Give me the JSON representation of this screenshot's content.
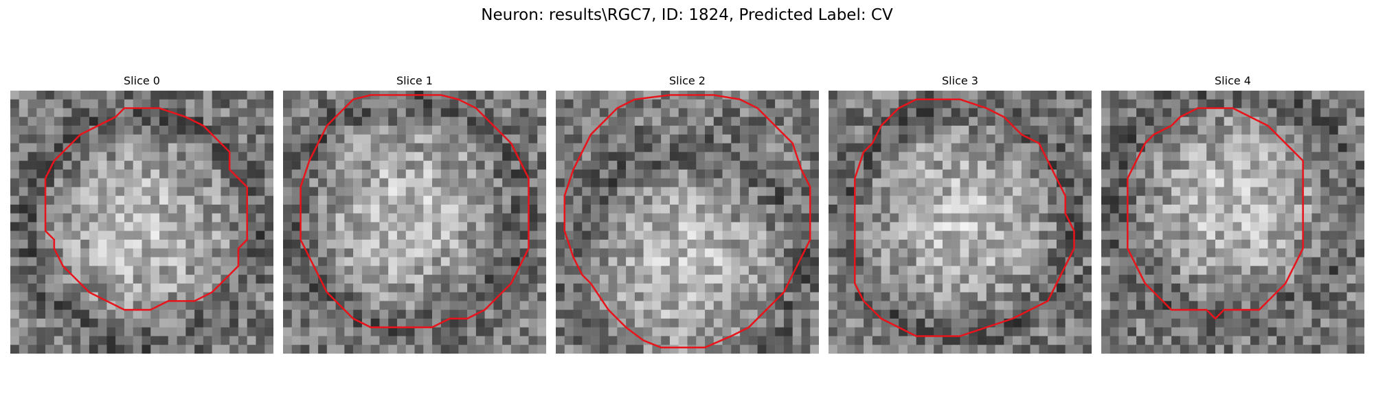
{
  "figure": {
    "title": "Neuron: results\\RGC7, ID: 1824, Predicted Label: CV"
  },
  "colors": {
    "contour": "#e8141b",
    "colormap": "gray"
  },
  "panels": [
    {
      "title": "Slice 0",
      "image_grid": 30,
      "bright_center": [
        15,
        16
      ],
      "contour": [
        [
          13,
          2
        ],
        [
          17,
          2
        ],
        [
          20,
          3
        ],
        [
          22,
          4
        ],
        [
          25,
          7
        ],
        [
          25,
          9
        ],
        [
          27,
          11
        ],
        [
          27,
          12
        ],
        [
          27,
          14
        ],
        [
          27,
          16
        ],
        [
          27,
          17
        ],
        [
          26,
          18
        ],
        [
          26,
          20
        ],
        [
          25,
          21
        ],
        [
          24,
          22
        ],
        [
          23,
          23
        ],
        [
          21,
          24
        ],
        [
          20,
          24
        ],
        [
          18,
          24
        ],
        [
          16,
          25
        ],
        [
          14,
          25
        ],
        [
          13,
          25
        ],
        [
          11,
          24
        ],
        [
          9,
          23
        ],
        [
          7,
          21
        ],
        [
          6,
          20
        ],
        [
          5,
          18
        ],
        [
          5,
          17
        ],
        [
          4,
          16
        ],
        [
          4,
          14
        ],
        [
          4,
          12
        ],
        [
          4,
          10
        ],
        [
          5,
          8
        ],
        [
          6,
          7
        ],
        [
          7,
          6
        ],
        [
          8,
          5
        ],
        [
          10,
          4
        ],
        [
          12,
          3
        ]
      ],
      "contour_closed": true
    },
    {
      "title": "Slice 1",
      "image_grid": 30,
      "bright_center": [
        14,
        14
      ],
      "contour": [
        [
          8,
          1
        ],
        [
          10,
          0.5
        ],
        [
          18,
          0.5
        ],
        [
          20,
          1
        ],
        [
          22,
          2
        ],
        [
          24,
          4
        ],
        [
          26,
          6
        ],
        [
          27,
          8
        ],
        [
          28,
          10
        ],
        [
          28,
          13
        ],
        [
          28,
          16
        ],
        [
          28,
          18
        ],
        [
          27,
          20
        ],
        [
          26,
          22
        ],
        [
          25,
          23
        ],
        [
          23,
          25
        ],
        [
          21,
          26
        ],
        [
          19,
          26
        ],
        [
          17,
          27
        ],
        [
          14,
          27
        ],
        [
          12,
          27
        ],
        [
          10,
          27
        ],
        [
          8,
          26
        ],
        [
          7,
          25
        ],
        [
          5,
          23
        ],
        [
          4,
          21
        ],
        [
          3,
          19
        ],
        [
          2,
          17
        ],
        [
          2,
          14
        ],
        [
          2,
          11
        ],
        [
          3,
          8
        ],
        [
          4,
          6
        ],
        [
          5,
          4
        ],
        [
          6,
          3
        ]
      ],
      "contour_closed": true
    },
    {
      "title": "Slice 2",
      "image_grid": 30,
      "bright_center": [
        15,
        20
      ],
      "contour": [
        [
          13,
          0.5
        ],
        [
          9,
          1
        ],
        [
          7,
          2
        ],
        [
          5,
          4
        ],
        [
          4,
          5
        ],
        [
          3,
          7
        ],
        [
          2,
          9
        ],
        [
          1,
          12
        ],
        [
          1,
          14
        ],
        [
          1,
          16
        ],
        [
          2,
          19
        ],
        [
          3,
          21
        ],
        [
          4,
          22
        ],
        [
          6,
          25
        ],
        [
          8,
          27
        ],
        [
          10,
          28.5
        ],
        [
          12,
          29.3
        ],
        [
          17,
          29.3
        ],
        [
          20,
          28
        ],
        [
          22,
          27
        ],
        [
          24,
          25
        ],
        [
          26,
          23
        ],
        [
          27,
          21
        ],
        [
          28,
          19
        ],
        [
          29,
          17
        ],
        [
          29,
          14
        ],
        [
          29,
          11
        ],
        [
          28,
          9
        ],
        [
          27,
          6
        ],
        [
          25,
          4
        ],
        [
          23,
          2
        ],
        [
          21,
          1
        ],
        [
          18,
          0.5
        ]
      ],
      "contour_closed": true
    },
    {
      "title": "Slice 3",
      "image_grid": 30,
      "bright_center": [
        15,
        15
      ],
      "contour": [
        [
          10,
          1
        ],
        [
          15,
          1
        ],
        [
          18,
          2
        ],
        [
          20,
          3
        ],
        [
          22,
          5
        ],
        [
          24,
          6
        ],
        [
          25,
          8
        ],
        [
          26,
          10
        ],
        [
          27,
          12
        ],
        [
          27,
          14
        ],
        [
          28,
          16
        ],
        [
          28,
          18
        ],
        [
          27,
          20
        ],
        [
          26,
          22
        ],
        [
          25,
          24
        ],
        [
          23,
          25
        ],
        [
          21,
          26
        ],
        [
          18,
          27
        ],
        [
          15,
          28
        ],
        [
          10,
          28
        ],
        [
          8,
          27
        ],
        [
          6,
          26
        ],
        [
          5,
          25
        ],
        [
          4,
          24
        ],
        [
          3,
          22
        ],
        [
          3,
          20
        ],
        [
          3,
          18
        ],
        [
          3,
          16
        ],
        [
          3,
          14
        ],
        [
          3,
          12
        ],
        [
          3,
          10
        ],
        [
          4,
          7
        ],
        [
          5,
          6
        ],
        [
          6,
          4
        ],
        [
          8,
          2
        ]
      ],
      "contour_closed": true
    },
    {
      "title": "Slice 4",
      "image_grid": 30,
      "bright_center": [
        15,
        13
      ],
      "contour": [
        [
          11,
          2
        ],
        [
          13,
          2
        ],
        [
          15,
          2
        ],
        [
          17,
          3
        ],
        [
          19,
          4
        ],
        [
          20,
          5
        ],
        [
          22,
          7
        ],
        [
          23,
          8
        ],
        [
          23,
          10
        ],
        [
          23,
          12
        ],
        [
          23,
          14
        ],
        [
          23,
          16
        ],
        [
          23,
          18
        ],
        [
          22,
          20
        ],
        [
          21,
          22
        ],
        [
          20,
          23
        ],
        [
          18,
          25
        ],
        [
          16,
          25
        ],
        [
          14,
          25
        ],
        [
          13,
          26
        ],
        [
          12,
          25
        ],
        [
          10,
          25
        ],
        [
          8,
          25
        ],
        [
          7,
          24
        ],
        [
          6,
          23
        ],
        [
          5,
          22
        ],
        [
          4,
          20
        ],
        [
          3,
          18
        ],
        [
          3,
          16
        ],
        [
          3,
          14
        ],
        [
          3,
          12
        ],
        [
          3,
          10
        ],
        [
          4,
          8
        ],
        [
          5,
          6
        ],
        [
          6,
          5
        ],
        [
          8,
          4
        ],
        [
          9,
          3
        ]
      ],
      "contour_closed": true
    }
  ]
}
